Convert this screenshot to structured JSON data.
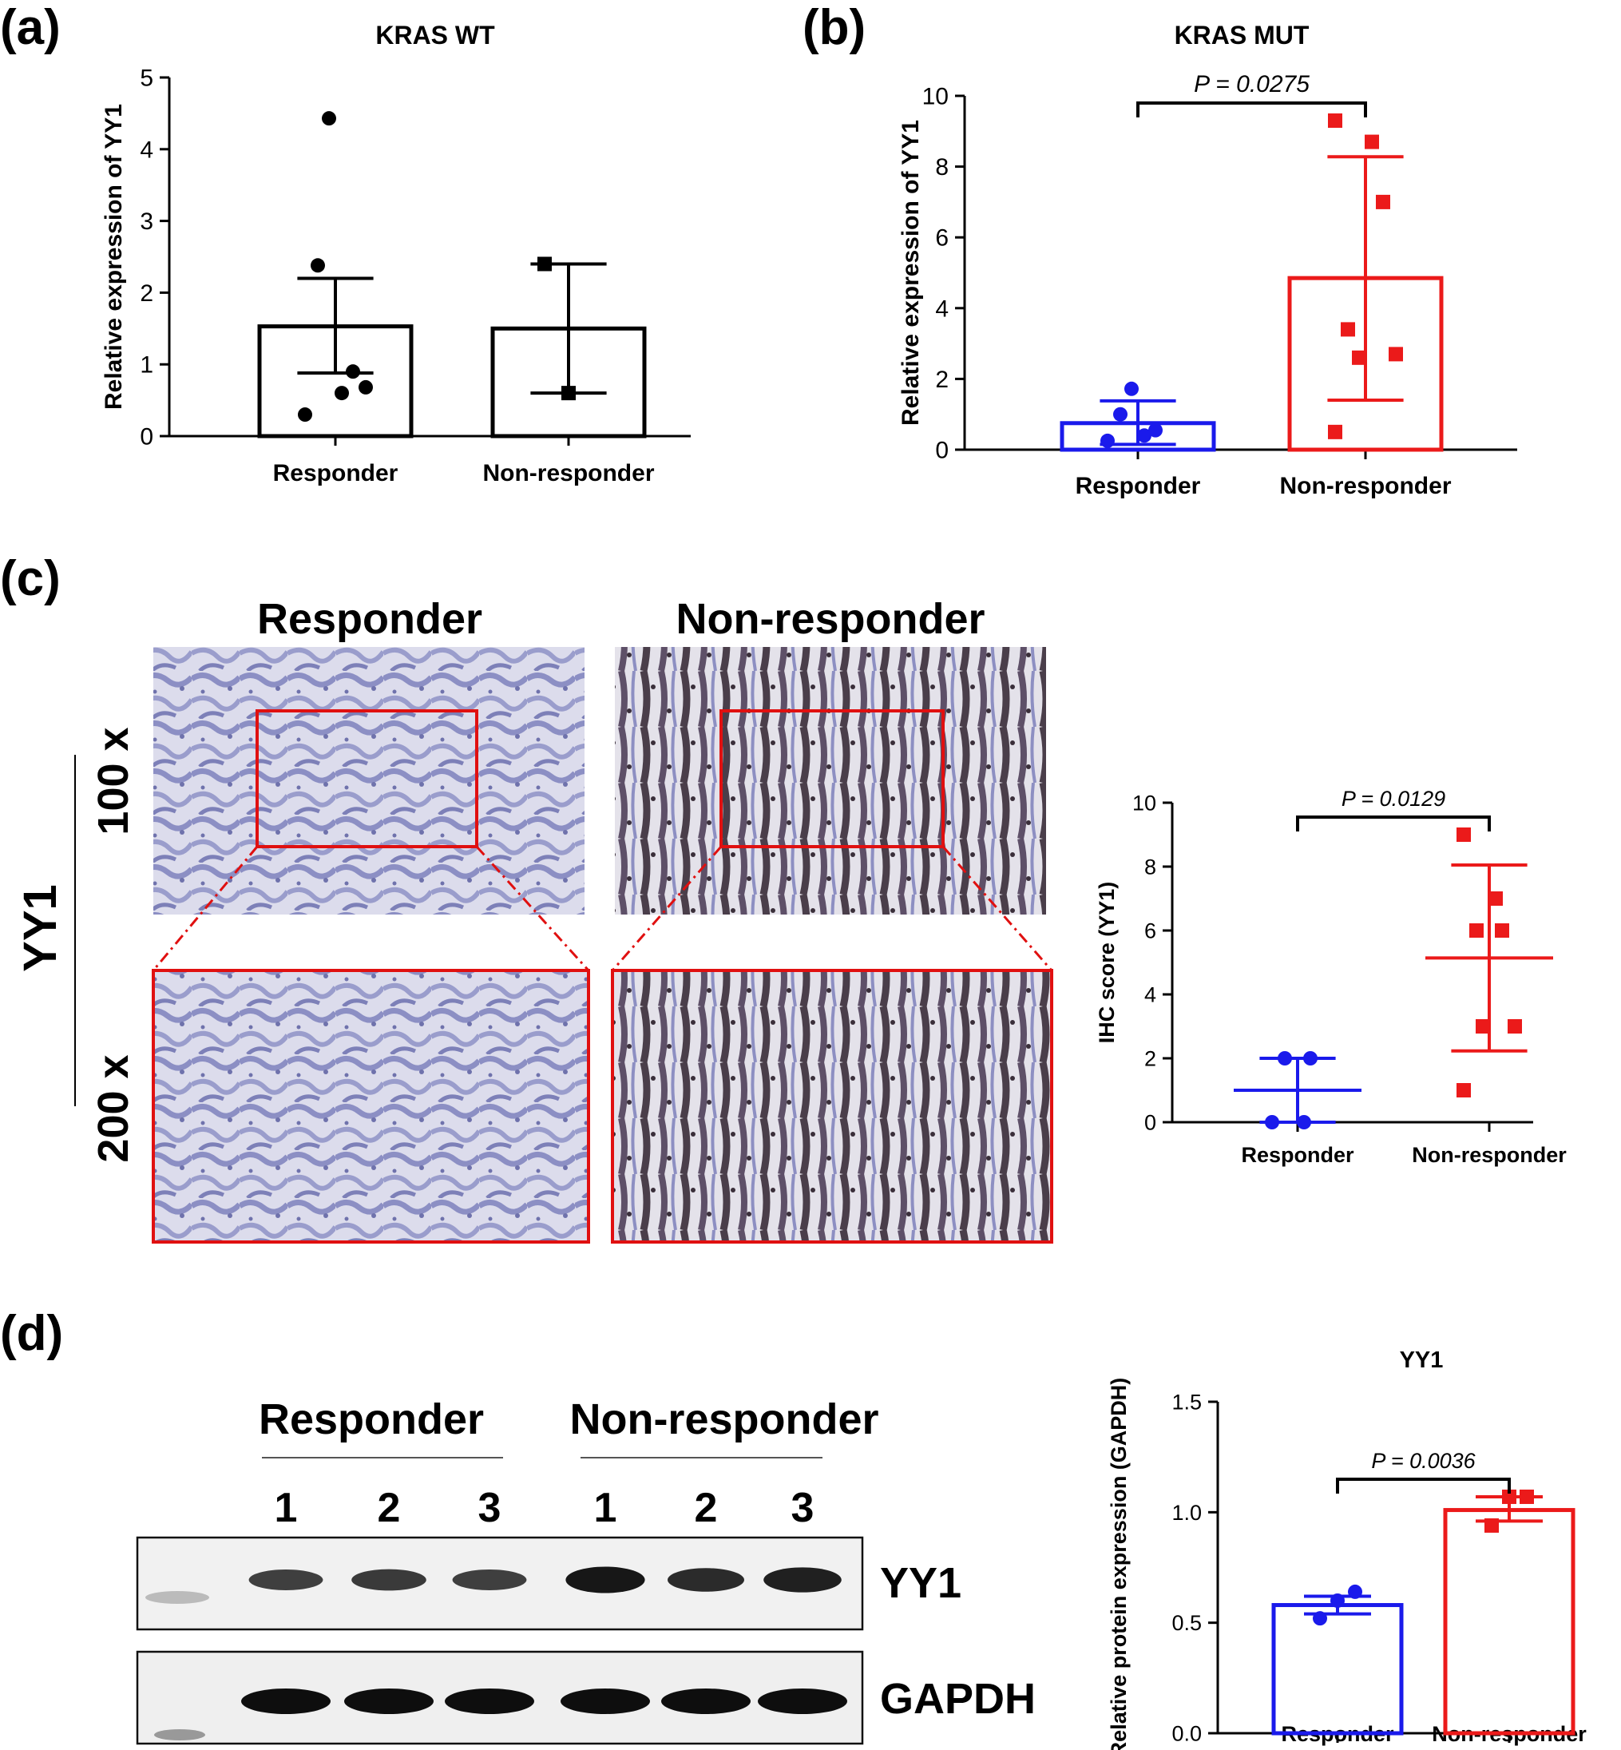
{
  "panels": {
    "a": "(a)",
    "b": "(b)",
    "c": "(c)",
    "d": "(d)"
  },
  "ihc": {
    "col_responder": "Responder",
    "col_nonresponder": "Non-responder",
    "row_100x": "100 x",
    "row_200x": "200 x",
    "marker": "YY1"
  },
  "western": {
    "group_responder": "Responder",
    "group_nonresponder": "Non-responder",
    "lanes": [
      "1",
      "2",
      "3",
      "1",
      "2",
      "3"
    ],
    "band_yy1": "YY1",
    "band_gapdh": "GAPDH",
    "yy1_intensity": [
      0.55,
      0.6,
      0.55,
      0.95,
      0.75,
      0.85
    ],
    "gapdh_intensity": [
      1,
      1,
      1,
      1,
      1,
      1
    ]
  },
  "colors": {
    "responder": "#1a1aeb",
    "nonresponder": "#eb1a1a",
    "black": "#000000",
    "crop_box": "#e01010",
    "tissue_blue": "#8c8fc4",
    "tissue_brown": "#4a3e4a"
  },
  "chart_data": [
    {
      "id": "a",
      "type": "bar",
      "title": "KRAS WT",
      "ylabel": "Relative expression of YY1",
      "categories": [
        "Responder",
        "Non-responder"
      ],
      "ylim": [
        0,
        5
      ],
      "yticks": [
        "0",
        "1",
        "2",
        "3",
        "4",
        "5"
      ],
      "bar_values": [
        1.53,
        1.5
      ],
      "error_upper": [
        2.2,
        2.4
      ],
      "error_lower": [
        0.88,
        0.6
      ],
      "points": [
        [
          0.3,
          0.6,
          0.9,
          2.38,
          4.43,
          0.68
        ],
        [
          2.4,
          0.6
        ]
      ],
      "colors": [
        "#000000",
        "#000000"
      ]
    },
    {
      "id": "b",
      "type": "bar",
      "title": "KRAS MUT",
      "ylabel": "Relative expression of YY1",
      "categories": [
        "Responder",
        "Non-responder"
      ],
      "ylim": [
        0,
        10
      ],
      "yticks": [
        "0",
        "2",
        "4",
        "6",
        "8",
        "10"
      ],
      "bar_values": [
        0.75,
        4.85
      ],
      "error_upper": [
        1.38,
        8.28
      ],
      "error_lower": [
        0.15,
        1.4
      ],
      "points": [
        [
          0.25,
          0.4,
          0.55,
          1.0,
          1.72
        ],
        [
          9.3,
          8.7,
          7.0,
          3.4,
          2.6,
          2.7,
          0.5
        ]
      ],
      "annotation": "P = 0.0275",
      "colors": [
        "#1a1aeb",
        "#eb1a1a"
      ]
    },
    {
      "id": "c",
      "type": "scatter",
      "title": "",
      "ylabel": "IHC score (YY1)",
      "categories": [
        "Responder",
        "Non-responder"
      ],
      "ylim": [
        0,
        10
      ],
      "yticks": [
        "0",
        "2",
        "4",
        "6",
        "8",
        "10"
      ],
      "mean_values": [
        1.0,
        5.14
      ],
      "error_upper": [
        2.0,
        8.05
      ],
      "error_lower": [
        0.0,
        2.23
      ],
      "points": [
        [
          0,
          0,
          2,
          2
        ],
        [
          9,
          7,
          6,
          6,
          3,
          3,
          1
        ]
      ],
      "annotation": "P = 0.0129",
      "colors": [
        "#1a1aeb",
        "#eb1a1a"
      ]
    },
    {
      "id": "d",
      "type": "bar",
      "title": "YY1",
      "ylabel": "Relative protein expression (GAPDH)",
      "categories": [
        "Responder",
        "Non-responder"
      ],
      "ylim": [
        0,
        1.5
      ],
      "yticks": [
        "0.0",
        "0.5",
        "1.0",
        "1.5"
      ],
      "bar_values": [
        0.58,
        1.01
      ],
      "error_upper": [
        0.62,
        1.07
      ],
      "error_lower": [
        0.54,
        0.96
      ],
      "points": [
        [
          0.52,
          0.6,
          0.64
        ],
        [
          0.94,
          1.07,
          1.07
        ]
      ],
      "annotation": "P = 0.0036",
      "colors": [
        "#1a1aeb",
        "#eb1a1a"
      ]
    }
  ]
}
